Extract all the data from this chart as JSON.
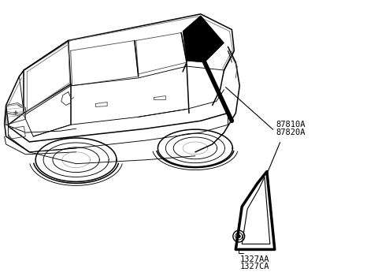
{
  "background_color": "#ffffff",
  "label_87810A": "87810A",
  "label_87820A": "87820A",
  "label_1327AA": "1327AA",
  "label_1327CA": "1327CA",
  "line_color": "#000000",
  "car_lw": 1.1,
  "thin_lw": 0.65
}
